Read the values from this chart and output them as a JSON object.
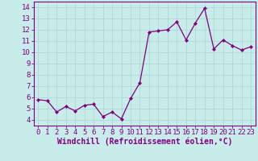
{
  "x": [
    0,
    1,
    2,
    3,
    4,
    5,
    6,
    7,
    8,
    9,
    10,
    11,
    12,
    13,
    14,
    15,
    16,
    17,
    18,
    19,
    20,
    21,
    22,
    23
  ],
  "y": [
    5.8,
    5.7,
    4.7,
    5.2,
    4.8,
    5.3,
    5.4,
    4.3,
    4.7,
    4.1,
    5.9,
    7.3,
    11.8,
    11.9,
    12.0,
    12.7,
    11.1,
    12.6,
    13.9,
    10.3,
    11.1,
    10.6,
    10.2,
    10.5
  ],
  "line_color": "#800080",
  "marker_color": "#800080",
  "bg_color": "#c8ecea",
  "grid_color": "#b0d8d5",
  "xlabel": "Windchill (Refroidissement éolien,°C)",
  "xlim": [
    -0.5,
    23.5
  ],
  "ylim": [
    3.5,
    14.5
  ],
  "yticks": [
    4,
    5,
    6,
    7,
    8,
    9,
    10,
    11,
    12,
    13,
    14
  ],
  "xticks": [
    0,
    1,
    2,
    3,
    4,
    5,
    6,
    7,
    8,
    9,
    10,
    11,
    12,
    13,
    14,
    15,
    16,
    17,
    18,
    19,
    20,
    21,
    22,
    23
  ],
  "font_size": 6.5,
  "xlabel_font_size": 7,
  "tick_color": "#800080",
  "spine_color": "#800080"
}
